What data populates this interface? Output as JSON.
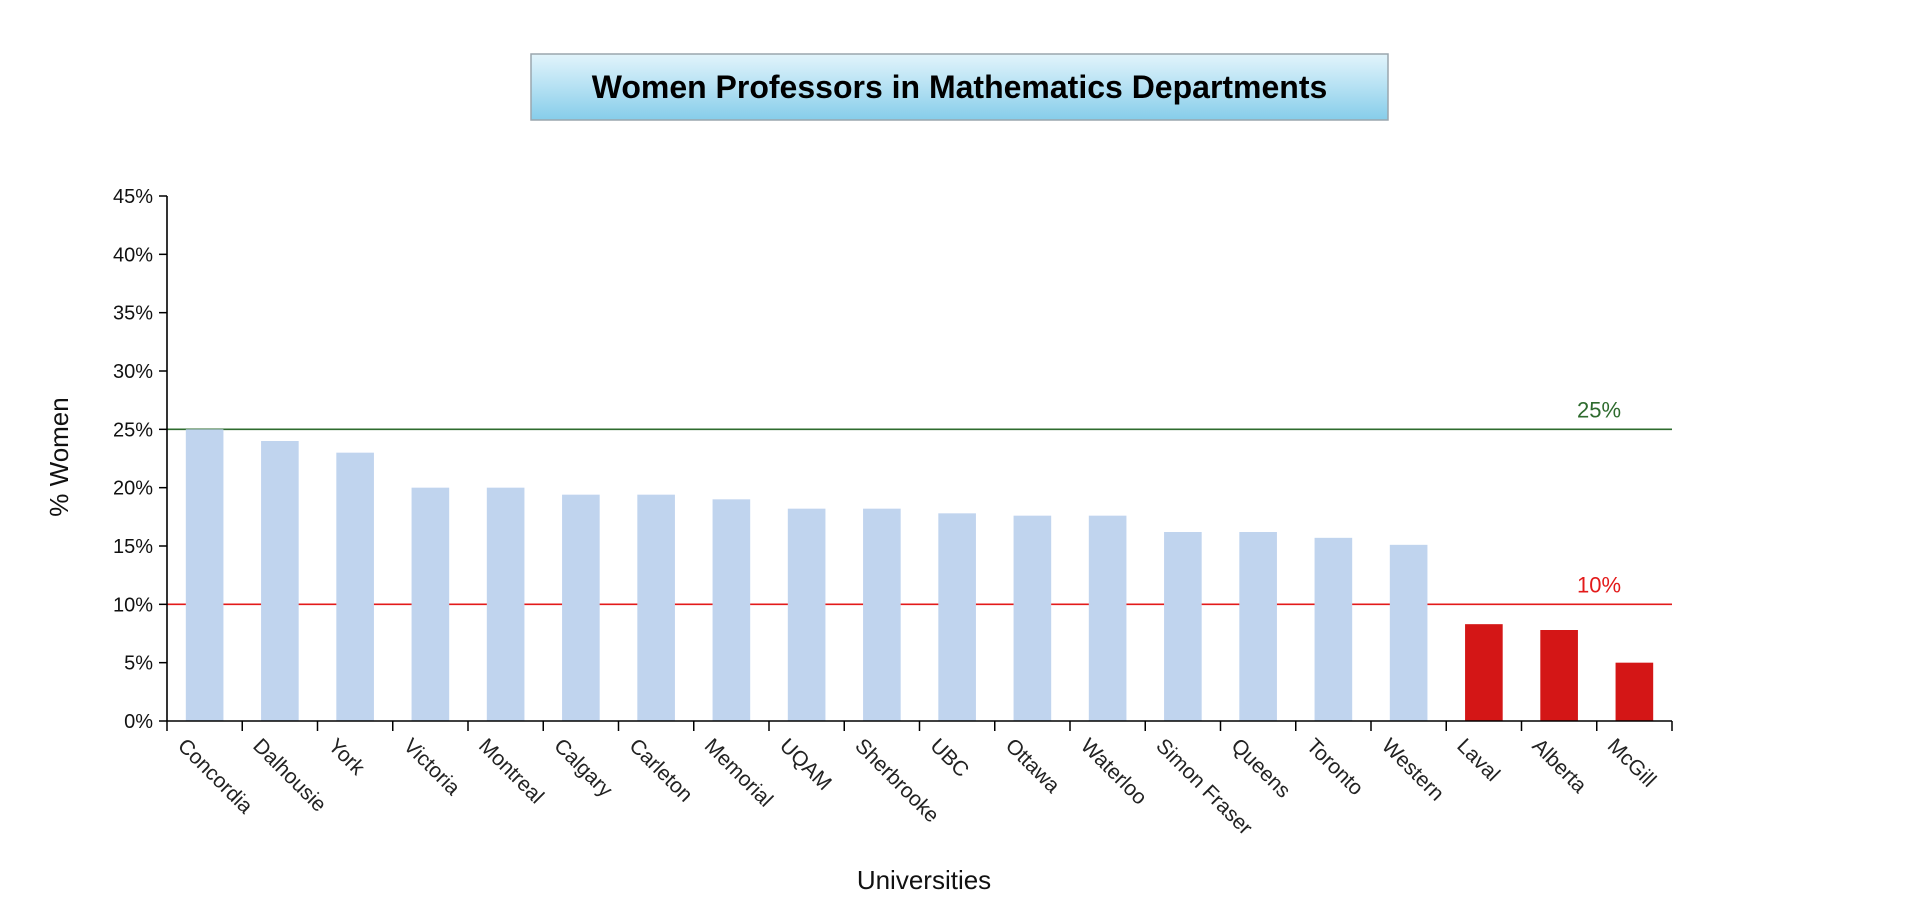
{
  "chart_data": {
    "type": "bar",
    "title": "Women Professors in Mathematics Departments",
    "xlabel": "Universities",
    "ylabel": "% Women",
    "ylim": [
      0,
      45
    ],
    "yticks": [
      "0%",
      "5%",
      "10%",
      "15%",
      "20%",
      "25%",
      "30%",
      "35%",
      "40%",
      "45%"
    ],
    "categories": [
      "Concordia",
      "Dalhousie",
      "York",
      "Victoria",
      "Montreal",
      "Calgary",
      "Carleton",
      "Memorial",
      "UQAM",
      "Sherbrooke",
      "UBC",
      "Ottawa",
      "Waterloo",
      "Simon Fraser",
      "Queens",
      "Toronto",
      "Western",
      "Laval",
      "Alberta",
      "McGill"
    ],
    "values": [
      25,
      24,
      23,
      20,
      20,
      19.4,
      19.4,
      19,
      18.2,
      18.2,
      17.8,
      17.6,
      17.6,
      16.2,
      16.2,
      15.7,
      15.1,
      8.3,
      7.8,
      5
    ],
    "bar_colors": [
      "#c0d4ee",
      "#c0d4ee",
      "#c0d4ee",
      "#c0d4ee",
      "#c0d4ee",
      "#c0d4ee",
      "#c0d4ee",
      "#c0d4ee",
      "#c0d4ee",
      "#c0d4ee",
      "#c0d4ee",
      "#c0d4ee",
      "#c0d4ee",
      "#c0d4ee",
      "#c0d4ee",
      "#c0d4ee",
      "#c0d4ee",
      "#d41616",
      "#d41616",
      "#d41616"
    ],
    "reference_lines": [
      {
        "value": 25,
        "label": "25%",
        "color": "#2e6b2e"
      },
      {
        "value": 10,
        "label": "10%",
        "color": "#e31a1a"
      }
    ],
    "grid": false,
    "legend": "none"
  }
}
